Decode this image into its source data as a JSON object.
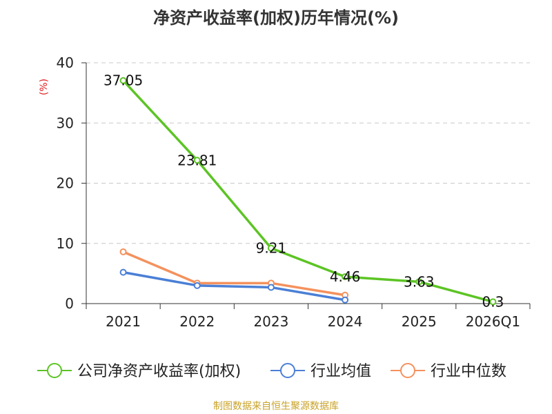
{
  "title": "净资产收益率(加权)历年情况(%)",
  "source": "制图数据来自恒生聚源数据库",
  "chart_data": {
    "type": "line",
    "title": "净资产收益率(加权)历年情况(%)",
    "ylabel": "(%)",
    "xlabel": "",
    "ylim": [
      0,
      40
    ],
    "yticks": [
      0,
      10,
      20,
      30,
      40
    ],
    "grid": true,
    "legend": "bottom",
    "categories": [
      "2021",
      "2022",
      "2023",
      "2024",
      "2025",
      "2026Q1"
    ],
    "series": [
      {
        "name": "公司净资产收益率(加权)",
        "color": "#5cc424",
        "values": [
          37.05,
          23.81,
          9.21,
          4.46,
          3.63,
          0.3
        ],
        "labels": [
          "37.05",
          "23.81",
          "9.21",
          "4.46",
          "3.63",
          "0.3"
        ]
      },
      {
        "name": "行业均值",
        "color": "#4a7fd6",
        "values": [
          5.2,
          3.0,
          2.7,
          0.6,
          null,
          null
        ]
      },
      {
        "name": "行业中位数",
        "color": "#f4915d",
        "values": [
          8.6,
          3.4,
          3.4,
          1.4,
          null,
          null
        ]
      }
    ]
  }
}
